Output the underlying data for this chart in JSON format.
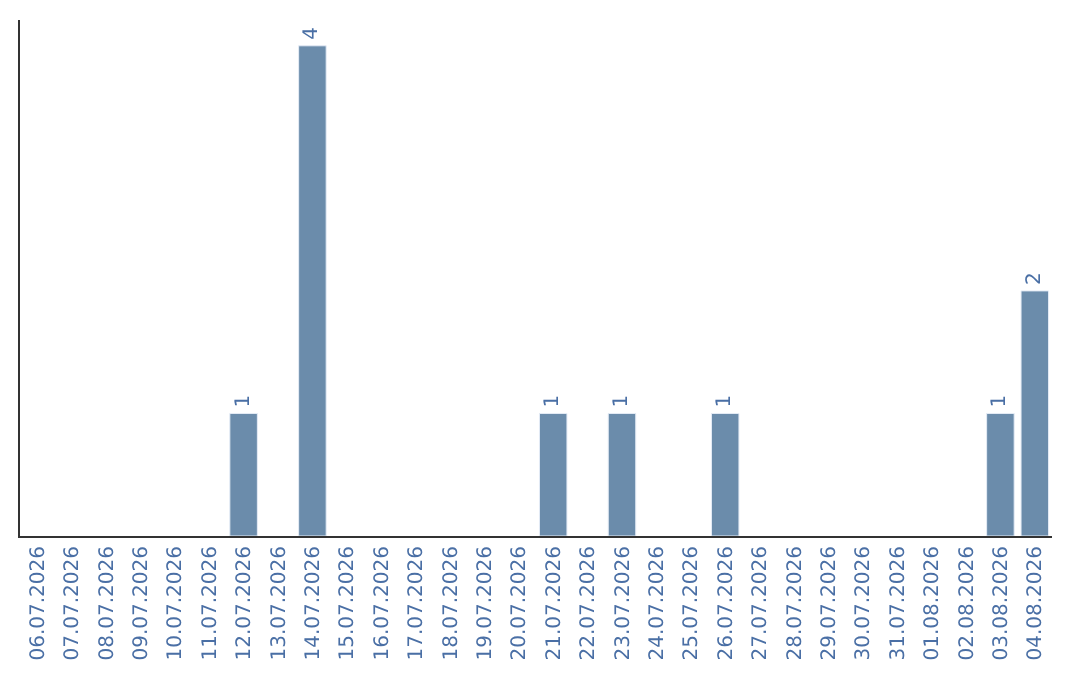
{
  "chart_data": {
    "type": "bar",
    "categories": [
      "06.07.2026",
      "07.07.2026",
      "08.07.2026",
      "09.07.2026",
      "10.07.2026",
      "11.07.2026",
      "12.07.2026",
      "13.07.2026",
      "14.07.2026",
      "15.07.2026",
      "16.07.2026",
      "17.07.2026",
      "18.07.2026",
      "19.07.2026",
      "20.07.2026",
      "21.07.2026",
      "22.07.2026",
      "23.07.2026",
      "24.07.2026",
      "25.07.2026",
      "26.07.2026",
      "27.07.2026",
      "28.07.2026",
      "29.07.2026",
      "30.07.2026",
      "31.07.2026",
      "01.08.2026",
      "02.08.2026",
      "03.08.2026",
      "04.08.2026"
    ],
    "values": [
      null,
      null,
      null,
      null,
      null,
      null,
      1,
      null,
      4,
      null,
      null,
      null,
      null,
      null,
      null,
      1,
      null,
      1,
      null,
      null,
      1,
      null,
      null,
      null,
      null,
      null,
      null,
      null,
      1,
      2
    ],
    "value_labels": [
      null,
      null,
      null,
      null,
      null,
      null,
      "1",
      null,
      "4",
      null,
      null,
      null,
      null,
      null,
      null,
      "1",
      null,
      "1",
      null,
      null,
      "1",
      null,
      null,
      null,
      null,
      null,
      null,
      null,
      "1",
      "2"
    ],
    "color": "#6b8cab",
    "legend": false
  }
}
